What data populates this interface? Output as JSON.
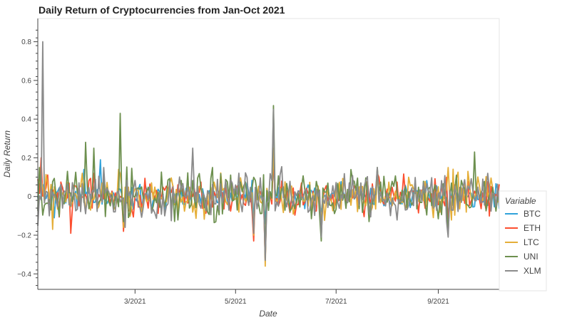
{
  "chart_data": {
    "type": "line",
    "title": "Daily Return of Cryptocurrencies from Jan-Oct 2021",
    "xlabel": "Date",
    "ylabel": "Daily Return",
    "xlim": [
      "2021-01-01",
      "2021-10-08"
    ],
    "ylim": [
      -0.48,
      0.92
    ],
    "x_ticks": [
      {
        "date": "2021-03-01",
        "label": "3/2021"
      },
      {
        "date": "2021-05-01",
        "label": "5/2021"
      },
      {
        "date": "2021-07-01",
        "label": "7/2021"
      },
      {
        "date": "2021-09-01",
        "label": "9/2021"
      }
    ],
    "y_ticks": [
      {
        "value": -0.4,
        "label": "−0.4"
      },
      {
        "value": -0.2,
        "label": "−0.2"
      },
      {
        "value": 0,
        "label": "0"
      },
      {
        "value": 0.2,
        "label": "0.2"
      },
      {
        "value": 0.4,
        "label": "0.4"
      },
      {
        "value": 0.6,
        "label": "0.6"
      },
      {
        "value": 0.8,
        "label": "0.8"
      }
    ],
    "grid": false,
    "legend": {
      "title": "Variable",
      "placement": "bottom-right, outside"
    },
    "series": [
      {
        "name": "BTC",
        "color": "#30a2da",
        "seed": 11,
        "scale": 0.032,
        "spikes": [
          [
            "2021-01-02",
            0.1
          ],
          [
            "2021-01-11",
            -0.11
          ],
          [
            "2021-01-29",
            0.14
          ],
          [
            "2021-02-08",
            0.19
          ],
          [
            "2021-02-22",
            -0.15
          ],
          [
            "2021-05-12",
            -0.12
          ],
          [
            "2021-05-19",
            -0.14
          ],
          [
            "2021-05-24",
            0.16
          ],
          [
            "2021-06-22",
            -0.08
          ],
          [
            "2021-07-26",
            0.13
          ],
          [
            "2021-09-07",
            -0.11
          ]
        ]
      },
      {
        "name": "ETH",
        "color": "#fc4f30",
        "seed": 23,
        "scale": 0.045,
        "spikes": [
          [
            "2021-01-03",
            0.2
          ],
          [
            "2021-01-21",
            -0.19
          ],
          [
            "2021-02-04",
            0.12
          ],
          [
            "2021-02-22",
            -0.18
          ],
          [
            "2021-05-12",
            -0.23
          ],
          [
            "2021-05-19",
            -0.33
          ],
          [
            "2021-05-24",
            0.22
          ],
          [
            "2021-06-22",
            -0.18
          ],
          [
            "2021-07-26",
            0.12
          ],
          [
            "2021-09-07",
            -0.17
          ]
        ]
      },
      {
        "name": "LTC",
        "color": "#e5ae38",
        "seed": 37,
        "scale": 0.05,
        "spikes": [
          [
            "2021-01-10",
            -0.17
          ],
          [
            "2021-01-28",
            0.12
          ],
          [
            "2021-02-19",
            0.14
          ],
          [
            "2021-02-22",
            -0.16
          ],
          [
            "2021-05-12",
            -0.2
          ],
          [
            "2021-05-19",
            -0.36
          ],
          [
            "2021-05-24",
            0.25
          ],
          [
            "2021-06-22",
            -0.16
          ],
          [
            "2021-07-26",
            0.14
          ],
          [
            "2021-09-07",
            0.15
          ],
          [
            "2021-09-19",
            0.13
          ]
        ]
      },
      {
        "name": "UNI",
        "color": "#6d904f",
        "seed": 53,
        "scale": 0.06,
        "spikes": [
          [
            "2021-01-02",
            0.15
          ],
          [
            "2021-01-19",
            0.13
          ],
          [
            "2021-01-30",
            0.28
          ],
          [
            "2021-02-04",
            0.25
          ],
          [
            "2021-02-20",
            0.43
          ],
          [
            "2021-02-22",
            -0.13
          ],
          [
            "2021-04-23",
            -0.09
          ],
          [
            "2021-05-19",
            -0.32
          ],
          [
            "2021-05-24",
            0.47
          ],
          [
            "2021-06-22",
            -0.23
          ],
          [
            "2021-07-26",
            0.15
          ],
          [
            "2021-09-07",
            -0.19
          ],
          [
            "2021-09-23",
            0.23
          ]
        ]
      },
      {
        "name": "XLM",
        "color": "#8b8b8b",
        "seed": 71,
        "scale": 0.055,
        "spikes": [
          [
            "2021-01-04",
            0.8
          ],
          [
            "2021-01-08",
            -0.1
          ],
          [
            "2021-02-10",
            0.15
          ],
          [
            "2021-02-23",
            -0.16
          ],
          [
            "2021-04-05",
            0.25
          ],
          [
            "2021-05-12",
            -0.19
          ],
          [
            "2021-05-19",
            -0.33
          ],
          [
            "2021-05-24",
            0.45
          ],
          [
            "2021-06-22",
            -0.21
          ],
          [
            "2021-07-26",
            0.15
          ],
          [
            "2021-09-07",
            -0.21
          ],
          [
            "2021-10-01",
            0.12
          ]
        ]
      }
    ]
  }
}
